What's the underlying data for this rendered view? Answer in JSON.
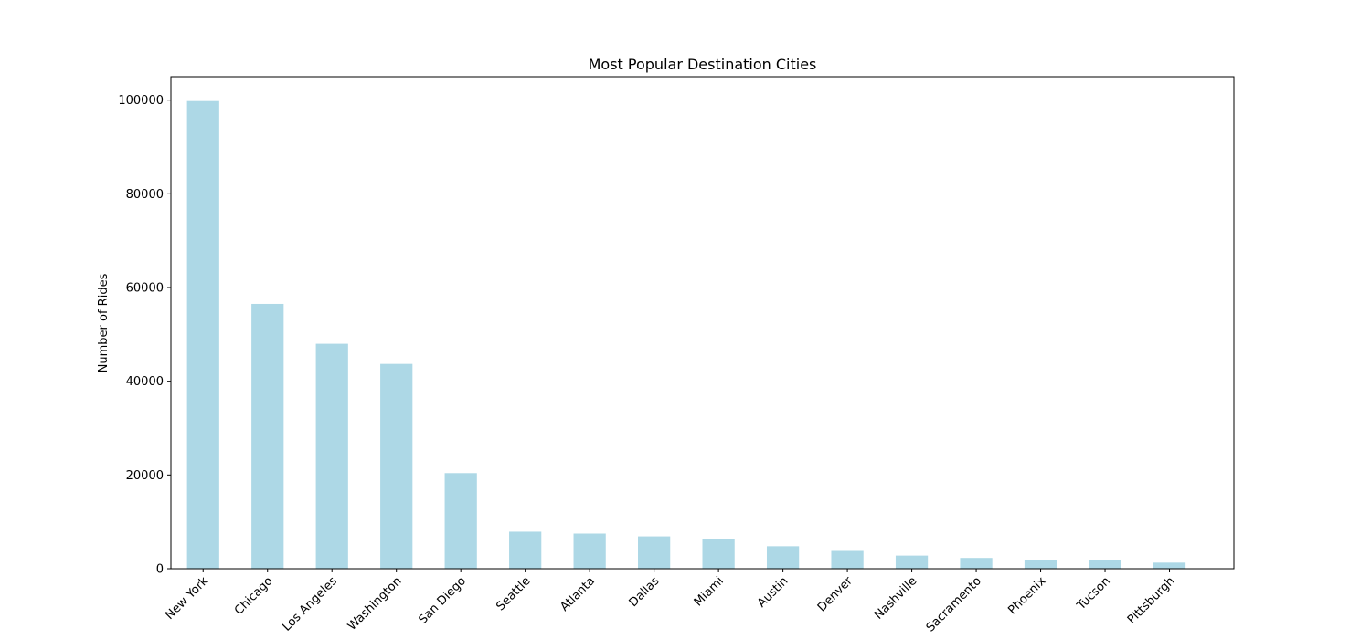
{
  "chart_data": {
    "type": "bar",
    "title": "Most Popular Destination Cities",
    "xlabel": "",
    "ylabel": "Number of Rides",
    "categories": [
      "New York",
      "Chicago",
      "Los Angeles",
      "Washington",
      "San Diego",
      "Seattle",
      "Atlanta",
      "Dallas",
      "Miami",
      "Austin",
      "Denver",
      "Nashville",
      "Sacramento",
      "Phoenix",
      "Tucson",
      "Pittsburgh"
    ],
    "values": [
      99800,
      56500,
      48000,
      43700,
      20400,
      7900,
      7500,
      6900,
      6300,
      4800,
      3800,
      2800,
      2300,
      1900,
      1800,
      1300
    ],
    "ylim": [
      0,
      105000
    ],
    "yticks": [
      0,
      20000,
      40000,
      60000,
      80000,
      100000
    ],
    "bar_color": "#add8e6",
    "grid": false,
    "legend": "none"
  }
}
